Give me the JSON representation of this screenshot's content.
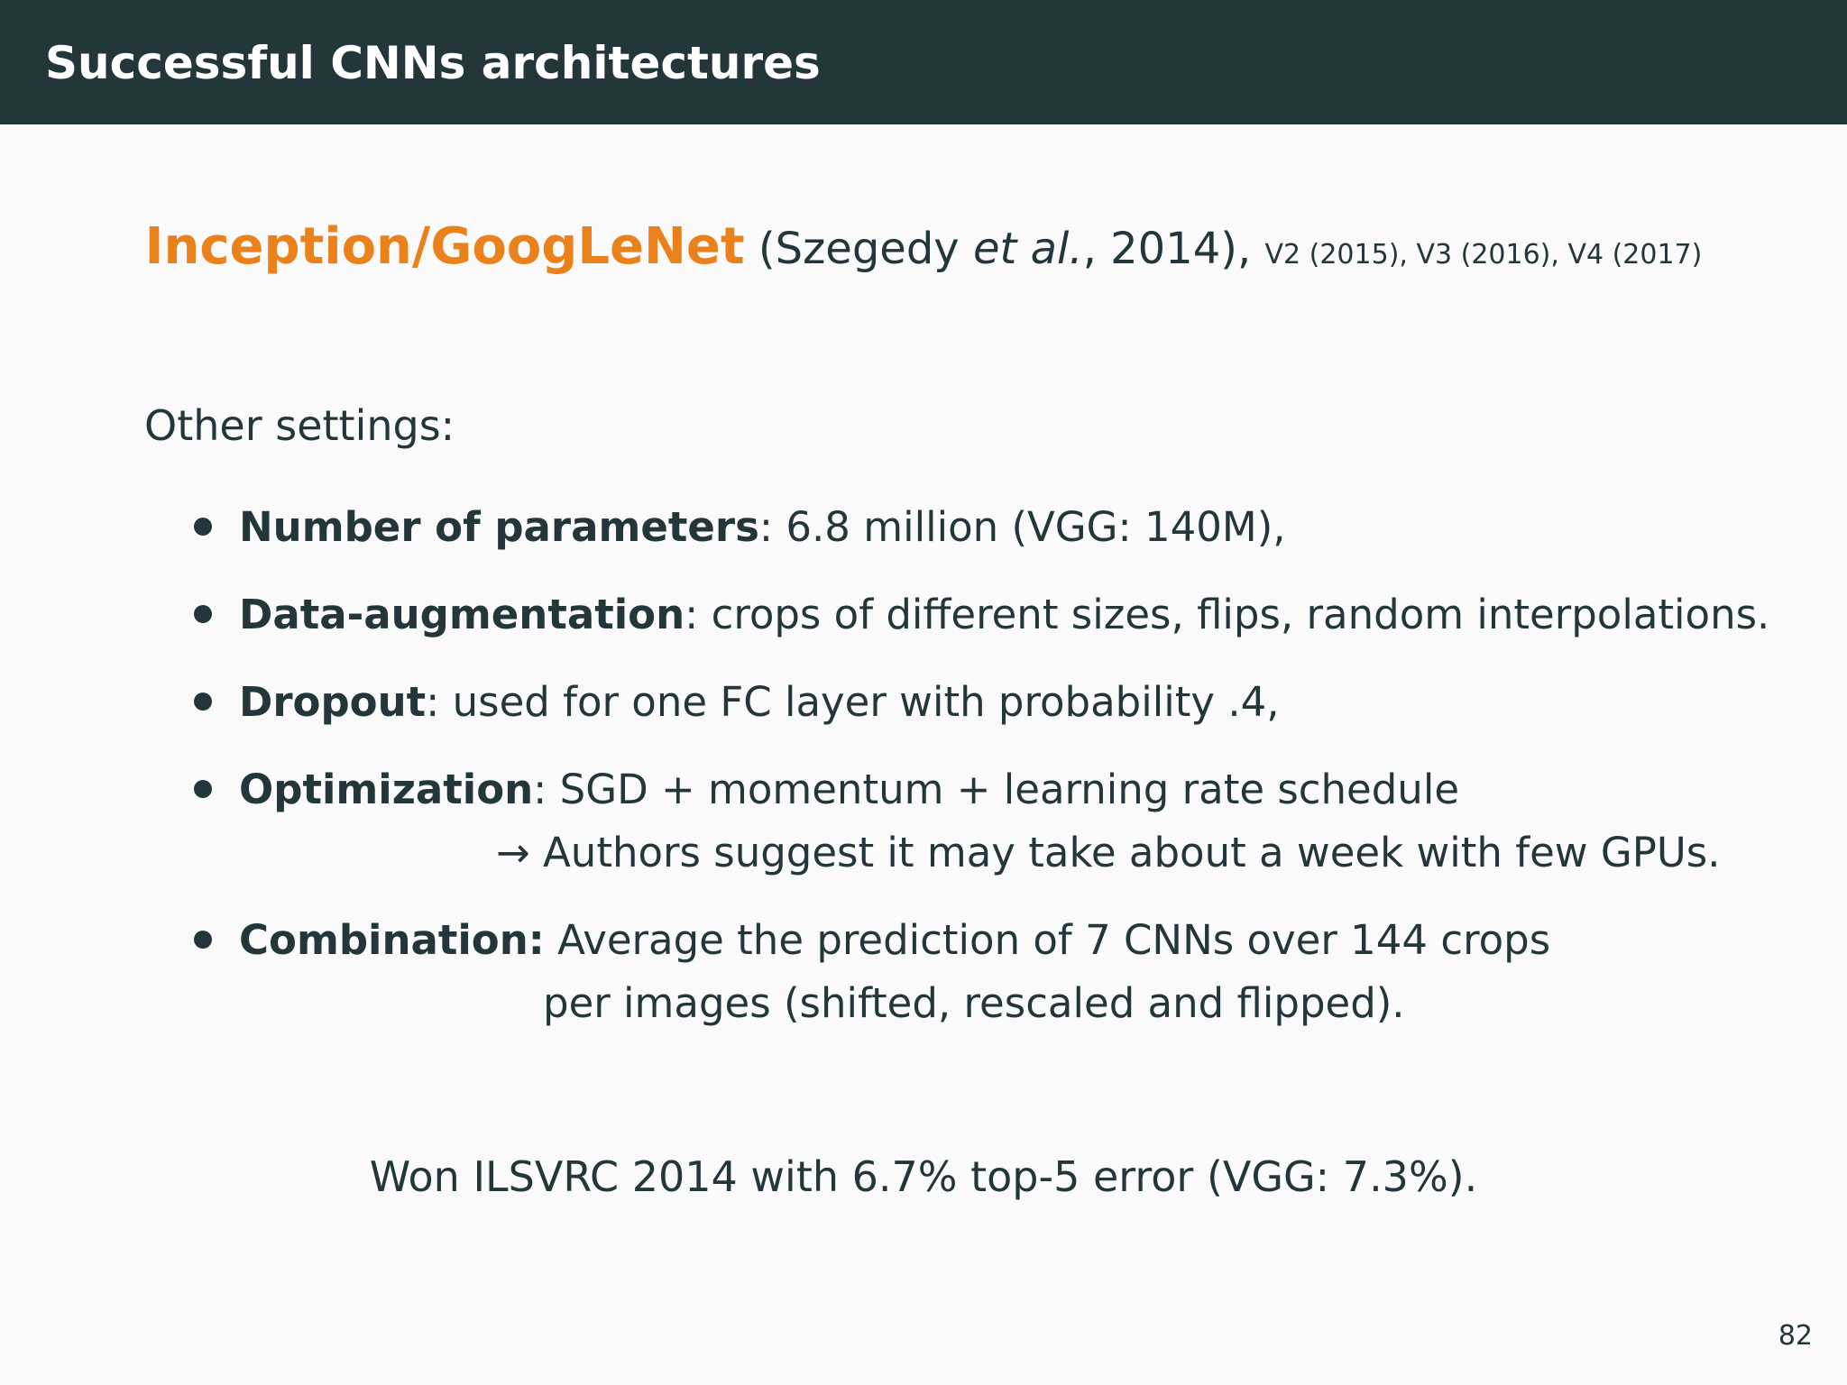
{
  "header": {
    "title": "Successful CNNs architectures"
  },
  "subtitle": {
    "name": "Inception/GoogLeNet",
    "citation_open": " (Szegedy ",
    "citation_etal": "et al.",
    "citation_close": ", 2014), ",
    "versions": "V2 (2015), V3 (2016), V4 (2017)"
  },
  "intro": "Other settings:",
  "bullets": [
    {
      "label": "Number of parameters",
      "text": ": 6.8 million (VGG: 140M),"
    },
    {
      "label": "Data-augmentation",
      "text": ": crops of different sizes, flips, random interpolations."
    },
    {
      "label": "Dropout",
      "text": ": used for one FC layer with probability .4,"
    },
    {
      "label": "Optimization",
      "text": ": SGD + momentum + learning rate schedule",
      "continuation": "→ Authors suggest it may take about a week with few GPUs."
    },
    {
      "label": "Combination:",
      "text": " Average the prediction of 7 CNNs over 144 crops",
      "continuation": "per images (shifted, rescaled and flipped)."
    }
  ],
  "result": "Won ILSVRC 2014 with 6.7% top-5 error (VGG: 7.3%).",
  "page_number": "82",
  "colors": {
    "header_bg": "#23373b",
    "accent": "#eb811b",
    "text": "#23373b",
    "background": "#fafafa"
  }
}
